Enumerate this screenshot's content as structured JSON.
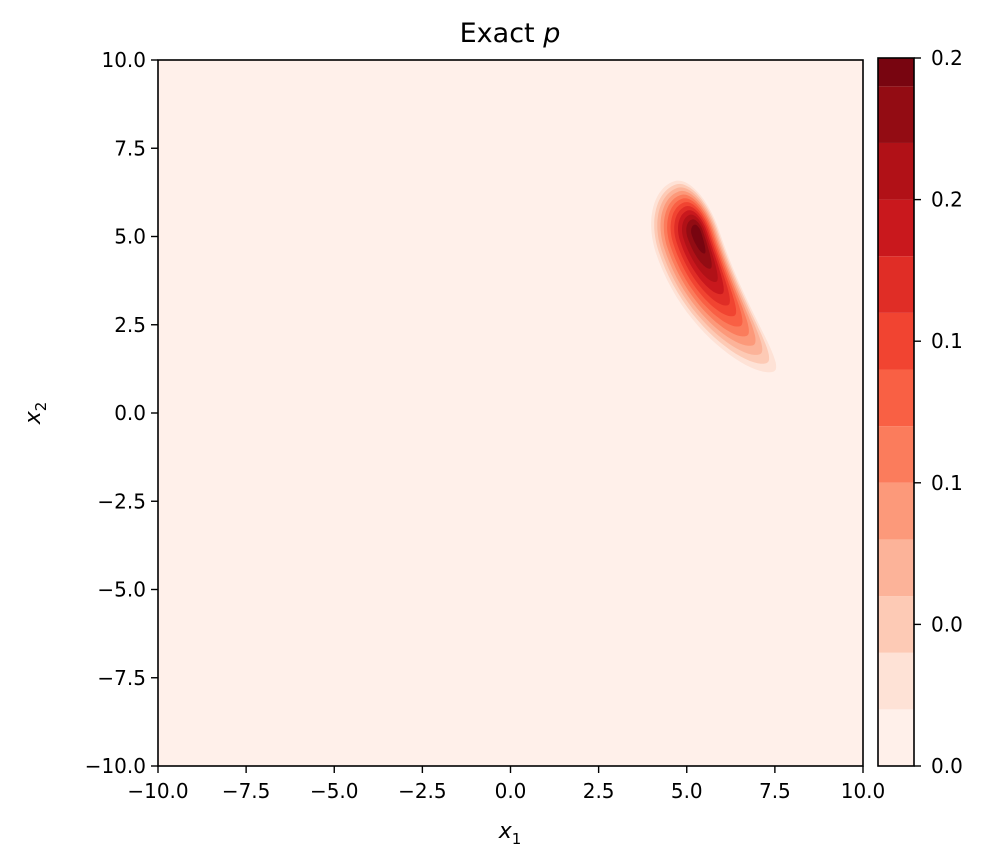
{
  "chart_data": {
    "type": "heatmap",
    "plot_kind": "filled-contour",
    "title_prefix": "Exact ",
    "title_math": "p",
    "xlabel_base": "x",
    "xlabel_sub": "1",
    "ylabel_base": "x",
    "ylabel_sub": "2",
    "xlim": [
      -10,
      10
    ],
    "ylim": [
      -10,
      10
    ],
    "xticks": [
      -10,
      -7.5,
      -5,
      -2.5,
      0,
      2.5,
      5,
      7.5,
      10
    ],
    "xtick_labels": [
      "−10.0",
      "−7.5",
      "−5.0",
      "−2.5",
      "0.0",
      "2.5",
      "5.0",
      "7.5",
      "10.0"
    ],
    "yticks": [
      -10,
      -7.5,
      -5,
      -2.5,
      0,
      2.5,
      5,
      7.5,
      10
    ],
    "ytick_labels": [
      "−10.0",
      "−7.5",
      "−5.0",
      "−2.5",
      "0.0",
      "2.5",
      "5.0",
      "7.5",
      "10.0"
    ],
    "grid": false,
    "colormap": "Reds",
    "peak": {
      "x1": 5.2,
      "x2": 4.9,
      "value": 0.25
    },
    "colorbar": {
      "vmin": 0.0,
      "vmax": 0.25,
      "levels": [
        0.0,
        0.02,
        0.04,
        0.06,
        0.08,
        0.1,
        0.12,
        0.14,
        0.16,
        0.18,
        0.2,
        0.22,
        0.24
      ],
      "level_colors": [
        "#fff0ea",
        "#fee2d6",
        "#fdcab5",
        "#fcb399",
        "#fc997a",
        "#fb7c5c",
        "#f96044",
        "#f14431",
        "#e02d26",
        "#c9181d",
        "#b11117",
        "#930c13",
        "#780510"
      ],
      "tick_values": [
        0.0,
        0.05,
        0.1,
        0.15,
        0.2,
        0.25
      ],
      "tick_labels": [
        "0.0",
        "0.0",
        "0.1",
        "0.1",
        "0.2",
        "0.2"
      ],
      "tick_label_values": [
        0.0,
        0.05,
        0.1,
        0.15,
        0.2,
        0.25
      ]
    }
  }
}
